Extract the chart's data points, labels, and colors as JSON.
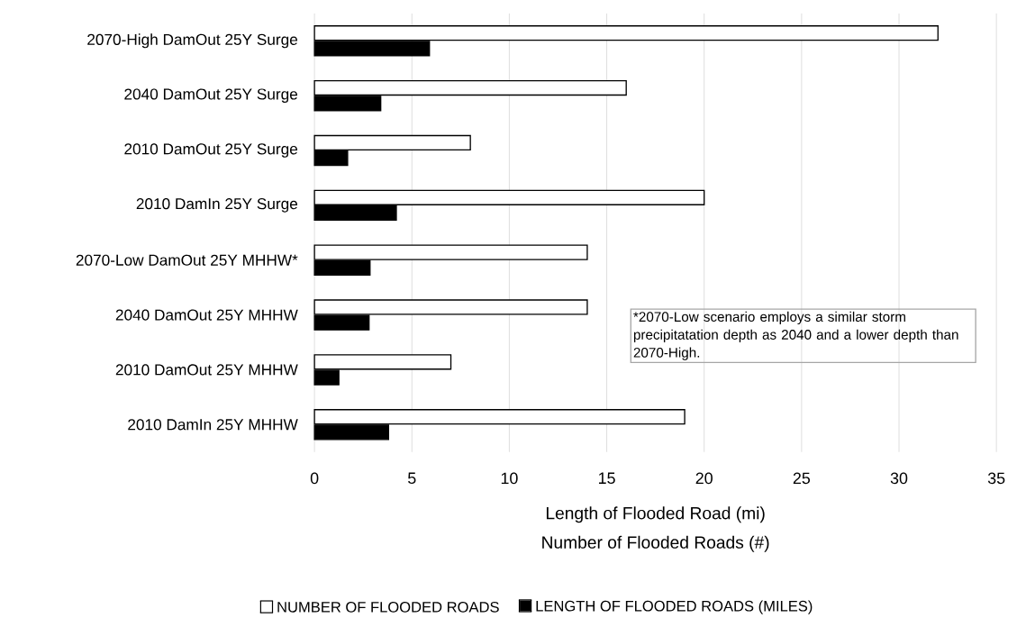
{
  "chart_data": {
    "type": "bar",
    "orientation": "horizontal",
    "categories": [
      "2070-High DamOut 25Y Surge",
      "2040 DamOut 25Y Surge",
      "2010 DamOut 25Y Surge",
      "2010 DamIn 25Y Surge",
      "2070-Low DamOut 25Y MHHW*",
      "2040 DamOut 25Y MHHW",
      "2010 DamOut 25Y MHHW",
      "2010 DamIn 25Y MHHW"
    ],
    "series": [
      {
        "name": "NUMBER OF FLOODED ROADS",
        "color": "#ffffff",
        "values": [
          32,
          16,
          8,
          20,
          14,
          14,
          7,
          19
        ]
      },
      {
        "name": "LENGTH OF FLOODED ROADS (MILES)",
        "color": "#000000",
        "values": [
          5.9,
          3.4,
          1.7,
          4.2,
          2.85,
          2.8,
          1.25,
          3.8
        ]
      }
    ],
    "xlabel": "Length of Flooded Road (mi)",
    "annotations": [
      "Number of Flooded Roads (#)",
      "*2070-Low scenario employs a similar storm precipitatation depth as 2040 and a lower depth than 2070-High."
    ],
    "xlim": [
      0,
      35
    ],
    "xticks": [
      0,
      5,
      10,
      15,
      20,
      25,
      30,
      35
    ],
    "grid": "x",
    "legend": "bottom"
  }
}
